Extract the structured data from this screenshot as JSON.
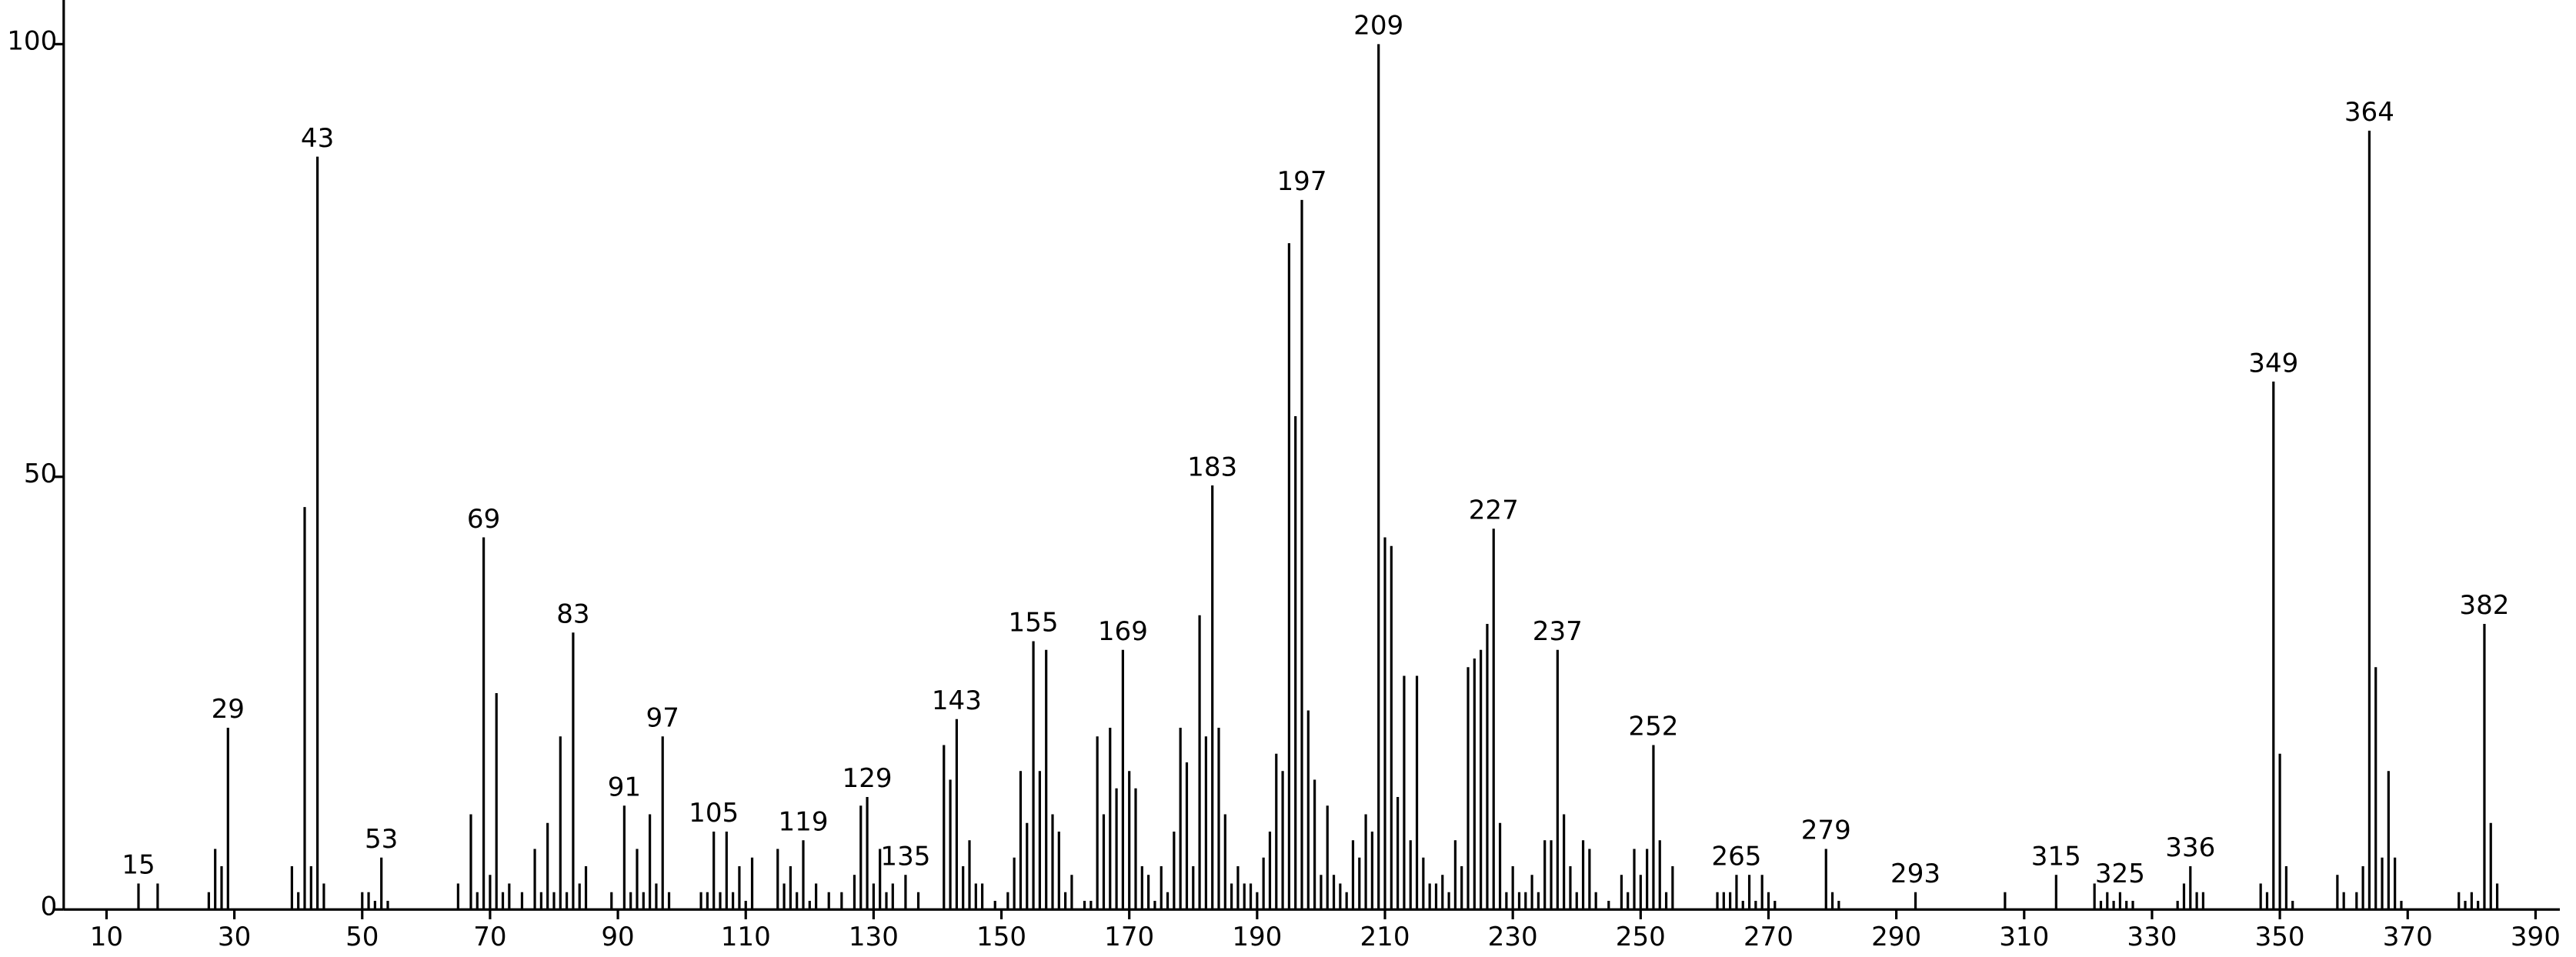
{
  "chart_data": {
    "type": "stick",
    "x": [
      15,
      18,
      26,
      27,
      28,
      29,
      39,
      40,
      41,
      42,
      43,
      44,
      50,
      51,
      52,
      53,
      54,
      65,
      67,
      68,
      69,
      70,
      71,
      72,
      73,
      75,
      77,
      78,
      79,
      80,
      81,
      82,
      83,
      84,
      85,
      89,
      91,
      92,
      93,
      94,
      95,
      96,
      97,
      98,
      103,
      104,
      105,
      106,
      107,
      108,
      109,
      110,
      111,
      115,
      116,
      117,
      118,
      119,
      120,
      121,
      123,
      125,
      127,
      128,
      129,
      130,
      131,
      132,
      133,
      135,
      137,
      141,
      142,
      143,
      144,
      145,
      146,
      147,
      149,
      151,
      152,
      153,
      154,
      155,
      156,
      157,
      158,
      159,
      160,
      161,
      163,
      164,
      165,
      166,
      167,
      168,
      169,
      170,
      171,
      172,
      173,
      174,
      175,
      176,
      177,
      178,
      179,
      180,
      181,
      182,
      183,
      184,
      185,
      186,
      187,
      188,
      189,
      190,
      191,
      192,
      193,
      194,
      195,
      196,
      197,
      198,
      199,
      200,
      201,
      202,
      203,
      204,
      205,
      206,
      207,
      208,
      209,
      210,
      211,
      212,
      213,
      214,
      215,
      216,
      217,
      218,
      219,
      220,
      221,
      222,
      223,
      224,
      225,
      226,
      227,
      228,
      229,
      230,
      231,
      232,
      233,
      234,
      235,
      236,
      237,
      238,
      239,
      240,
      241,
      242,
      243,
      245,
      247,
      248,
      249,
      250,
      251,
      252,
      253,
      254,
      255,
      262,
      263,
      264,
      265,
      266,
      267,
      268,
      269,
      270,
      271,
      279,
      280,
      281,
      293,
      307,
      315,
      321,
      322,
      323,
      324,
      325,
      326,
      327,
      334,
      335,
      336,
      337,
      338,
      347,
      348,
      349,
      350,
      351,
      352,
      359,
      360,
      362,
      363,
      364,
      365,
      366,
      367,
      368,
      369,
      378,
      379,
      380,
      381,
      382,
      383,
      384
    ],
    "values": [
      3,
      3,
      2,
      7,
      5,
      21,
      5,
      2,
      46.5,
      5,
      87,
      3,
      2,
      2,
      1,
      6,
      1,
      3,
      11,
      2,
      43,
      4,
      25,
      2,
      3,
      2,
      7,
      2,
      10,
      2,
      20,
      2,
      32,
      3,
      5,
      2,
      12,
      2,
      7,
      2,
      11,
      3,
      20,
      2,
      2,
      2,
      9,
      2,
      9,
      2,
      5,
      1,
      6,
      7,
      3,
      5,
      2,
      8,
      1,
      3,
      2,
      2,
      4,
      12,
      13,
      3,
      7,
      2,
      3,
      4,
      2,
      19,
      15,
      22,
      5,
      8,
      3,
      3,
      1,
      2,
      6,
      16,
      10,
      31,
      16,
      30,
      11,
      9,
      2,
      4,
      1,
      1,
      20,
      11,
      21,
      14,
      30,
      16,
      14,
      5,
      4,
      1,
      5,
      2,
      9,
      21,
      17,
      5,
      34,
      20,
      49,
      21,
      11,
      3,
      5,
      3,
      3,
      2,
      6,
      9,
      18,
      16,
      77,
      57,
      82,
      23,
      15,
      4,
      12,
      4,
      3,
      2,
      8,
      6,
      11,
      9,
      100,
      43,
      42,
      13,
      27,
      8,
      27,
      6,
      3,
      3,
      4,
      2,
      8,
      5,
      28,
      29,
      30,
      33,
      44,
      10,
      2,
      5,
      2,
      2,
      4,
      2,
      8,
      8,
      30,
      11,
      5,
      2,
      8,
      7,
      2,
      1,
      4,
      2,
      7,
      4,
      7,
      19,
      8,
      2,
      5,
      2,
      2,
      2,
      4,
      1,
      4,
      1,
      4,
      2,
      1,
      7,
      2,
      1,
      2,
      2,
      4,
      3,
      1,
      2,
      1,
      2,
      1,
      1,
      1,
      3,
      5,
      2,
      2,
      3,
      2,
      61,
      18,
      5,
      1,
      4,
      2,
      2,
      5,
      90,
      28,
      6,
      16,
      6,
      1,
      2,
      1,
      2,
      1,
      33,
      10,
      3
    ],
    "peak_labels": [
      15,
      29,
      43,
      53,
      69,
      83,
      91,
      97,
      105,
      119,
      129,
      135,
      143,
      155,
      169,
      183,
      197,
      209,
      227,
      237,
      252,
      265,
      279,
      293,
      315,
      325,
      336,
      349,
      364,
      382
    ],
    "color": "#000000",
    "xlim": [
      3.3,
      393.8
    ],
    "ylim": [
      0,
      105.1
    ],
    "xticks": [
      10,
      30,
      50,
      70,
      90,
      110,
      130,
      150,
      170,
      190,
      210,
      230,
      250,
      270,
      290,
      310,
      330,
      350,
      370,
      390
    ],
    "yticks": [
      0,
      50,
      100
    ]
  }
}
